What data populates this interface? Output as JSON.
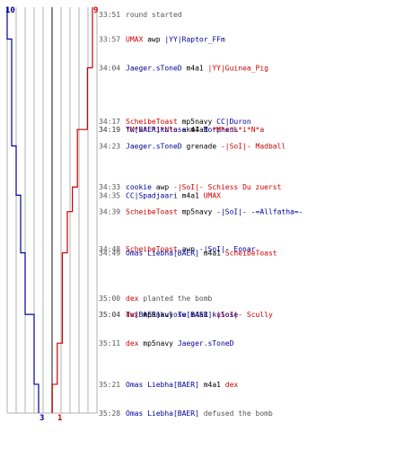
{
  "colors": {
    "team_a": "#000099",
    "team_b": "#cc0000",
    "grid": "#b0b0b0",
    "center": "#555555",
    "time": "#555555",
    "verb": "#000000"
  },
  "chart_data": {
    "type": "line",
    "title": "",
    "x": [
      "33:51",
      "33:57",
      "34:04",
      "34:17",
      "34:19",
      "34:19",
      "34:23",
      "34:33",
      "34:35",
      "34:39",
      "34:48",
      "34:49",
      "35:00",
      "35:04",
      "35:04",
      "35:11",
      "35:21",
      "35:28"
    ],
    "series": [
      {
        "values": [
          10,
          9,
          9,
          9,
          9,
          9,
          8,
          8,
          7,
          7,
          7,
          6,
          6,
          5,
          4,
          4,
          3,
          3
        ]
      },
      {
        "values": [
          9,
          9,
          8,
          8,
          7,
          6,
          6,
          5,
          5,
          4,
          4,
          3,
          3,
          3,
          3,
          2,
          1,
          1
        ]
      }
    ],
    "start_labels": {
      "team_a": "10",
      "team_b": "9"
    },
    "end_labels": {
      "team_a": "3",
      "team_b": "1"
    },
    "ylim": [
      0,
      10
    ],
    "grid": true,
    "events": [
      {
        "time": "33:51",
        "parts": [
          {
            "text": "round started",
            "c": "info"
          }
        ]
      },
      {
        "time": "33:57",
        "parts": [
          {
            "text": "UMAX",
            "c": "red"
          },
          {
            "text": " awp ",
            "c": "black"
          },
          {
            "text": "|YY|Raptor_FFm",
            "c": "blue"
          }
        ]
      },
      {
        "time": "34:04",
        "parts": [
          {
            "text": "Jaeger.sToneD",
            "c": "blue"
          },
          {
            "text": " m4a1 ",
            "c": "black"
          },
          {
            "text": "|YY|Guinea_Pig",
            "c": "red"
          }
        ]
      },
      {
        "time": "34:17",
        "parts": [
          {
            "text": "ScheibeToast",
            "c": "red"
          },
          {
            "text": " mp5navy ",
            "c": "black"
          },
          {
            "text": "CC|Duron",
            "c": "blue"
          }
        ]
      },
      {
        "time": "34:19",
        "parts": [
          {
            "text": "*M*x*L*i*N*a",
            "c": "red"
          },
          {
            "text": " ak47 ",
            "c": "black"
          },
          {
            "text": "Morpheus",
            "c": "blue"
          }
        ]
      },
      {
        "time": "34:19",
        "parts": [
          {
            "text": "Tw[BAER]kulose",
            "c": "blue"
          },
          {
            "text": " m4a1 ",
            "c": "black"
          },
          {
            "text": "*M*x*L*i*N*a",
            "c": "red"
          }
        ]
      },
      {
        "time": "34:23",
        "parts": [
          {
            "text": "Jaeger.sToneD",
            "c": "blue"
          },
          {
            "text": " grenade ",
            "c": "black"
          },
          {
            "text": "-|SoI|- Madball",
            "c": "red"
          }
        ]
      },
      {
        "time": "34:33",
        "parts": [
          {
            "text": "cookie",
            "c": "blue"
          },
          {
            "text": " awp ",
            "c": "black"
          },
          {
            "text": "-|SoI|- Schiess Du zuerst",
            "c": "red"
          }
        ]
      },
      {
        "time": "34:35",
        "parts": [
          {
            "text": "CC|Spadjaari",
            "c": "blue"
          },
          {
            "text": " m4a1 ",
            "c": "black"
          },
          {
            "text": "UMAX",
            "c": "red"
          }
        ]
      },
      {
        "time": "34:39",
        "parts": [
          {
            "text": "ScheibeToast",
            "c": "red"
          },
          {
            "text": " mp5navy ",
            "c": "black"
          },
          {
            "text": "-|SoI|- -=Allfatha=-",
            "c": "blue"
          }
        ]
      },
      {
        "time": "34:48",
        "parts": [
          {
            "text": "ScheibeToast",
            "c": "red"
          },
          {
            "text": " awp ",
            "c": "black"
          },
          {
            "text": "-|SoI|- Eonar",
            "c": "blue"
          }
        ]
      },
      {
        "time": "34:49",
        "parts": [
          {
            "text": "Omas Liebha[BAER]",
            "c": "blue"
          },
          {
            "text": " m4a1 ",
            "c": "black"
          },
          {
            "text": "ScheibeToast",
            "c": "red"
          }
        ]
      },
      {
        "time": "35:00",
        "parts": [
          {
            "text": "dex",
            "c": "red"
          },
          {
            "text": " planted the bomb",
            "c": "info"
          }
        ]
      },
      {
        "time": "35:04",
        "parts": [
          {
            "text": "Tw[BAER]kulose",
            "c": "blue"
          },
          {
            "text": " m4a1 ",
            "c": "black"
          },
          {
            "text": "-|SoI|- Scully",
            "c": "red"
          }
        ]
      },
      {
        "time": "35:04",
        "parts": [
          {
            "text": "dex",
            "c": "red"
          },
          {
            "text": " mp5navy ",
            "c": "black"
          },
          {
            "text": "Tw[BAER]kulose",
            "c": "blue"
          }
        ]
      },
      {
        "time": "35:11",
        "parts": [
          {
            "text": "dex",
            "c": "red"
          },
          {
            "text": " mp5navy ",
            "c": "black"
          },
          {
            "text": "Jaeger.sToneD",
            "c": "blue"
          }
        ]
      },
      {
        "time": "35:21",
        "parts": [
          {
            "text": "Omas Liebha[BAER]",
            "c": "blue"
          },
          {
            "text": " m4a1 ",
            "c": "black"
          },
          {
            "text": "dex",
            "c": "red"
          }
        ]
      },
      {
        "time": "35:28",
        "parts": [
          {
            "text": "Omas Liebha[BAER]",
            "c": "blue"
          },
          {
            "text": " defused the bomb",
            "c": "info"
          }
        ]
      }
    ]
  }
}
